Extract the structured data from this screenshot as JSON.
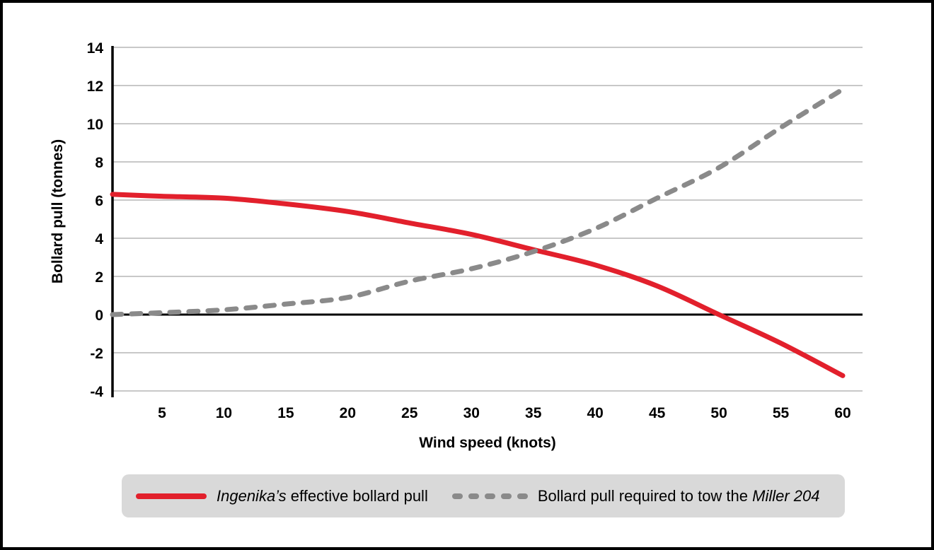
{
  "chart_data": {
    "type": "line",
    "title": "",
    "xlabel": "Wind speed (knots)",
    "ylabel": "Bollard pull (tonnes)",
    "x": [
      1,
      5,
      10,
      15,
      20,
      25,
      30,
      35,
      40,
      45,
      50,
      55,
      60
    ],
    "series": [
      {
        "name": "Ingenika’s effective bollard pull",
        "style": "solid",
        "color": "#e2202c",
        "values": [
          6.3,
          6.2,
          6.1,
          5.8,
          5.4,
          4.8,
          4.2,
          3.4,
          2.6,
          1.5,
          0.0,
          -1.5,
          -3.2
        ]
      },
      {
        "name": "Bollard pull required to tow the Miller 204",
        "style": "dashed",
        "color": "#8a8a8a",
        "values": [
          0.0,
          0.1,
          0.25,
          0.55,
          0.9,
          1.75,
          2.4,
          3.3,
          4.5,
          6.1,
          7.7,
          9.8,
          11.8
        ]
      }
    ],
    "xlim": [
      1,
      61.6
    ],
    "ylim": [
      -4,
      14
    ],
    "x_ticks": [
      5,
      10,
      15,
      20,
      25,
      30,
      35,
      40,
      45,
      50,
      55,
      60
    ],
    "y_ticks": [
      14,
      12,
      10,
      8,
      6,
      4,
      2,
      0,
      -2,
      -4
    ],
    "grid": "horizontal",
    "zero_line": true,
    "legend_position": "bottom"
  },
  "legend": {
    "entries": [
      {
        "swatch": "solid-red",
        "parts": [
          {
            "text": "Ingenika’s",
            "italic": true
          },
          {
            "text": " effective bollard pull",
            "italic": false
          }
        ]
      },
      {
        "swatch": "dashed-gray",
        "parts": [
          {
            "text": "Bollard pull required to tow the ",
            "italic": false
          },
          {
            "text": "Miller 204",
            "italic": true
          }
        ]
      }
    ]
  },
  "colors": {
    "red_line": "#e2202c",
    "gray_line": "#8a8a8a",
    "gridline": "#a8a8a8",
    "axis": "#000000",
    "legend_bg": "#d9d9d9",
    "background": "#ffffff",
    "border": "#000000"
  }
}
